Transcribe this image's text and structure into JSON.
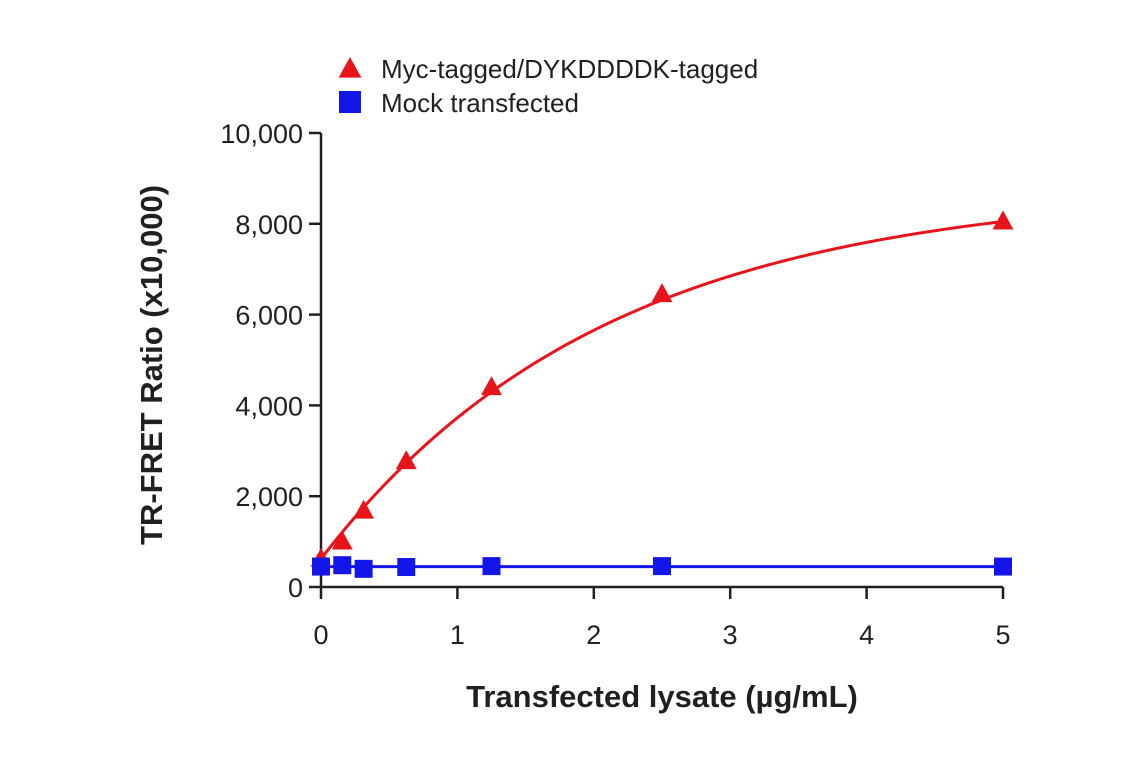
{
  "chart_data": {
    "type": "line",
    "title": "",
    "xlabel": "Transfected lysate (µg/mL)",
    "ylabel": "TR-FRET Ratio (x10,000)",
    "xlim": [
      0,
      5
    ],
    "ylim": [
      0,
      10000
    ],
    "x_ticks": [
      0,
      1,
      2,
      3,
      4,
      5
    ],
    "x_tick_labels": [
      "0",
      "1",
      "2",
      "3",
      "4",
      "5"
    ],
    "y_ticks": [
      0,
      2000,
      4000,
      6000,
      8000,
      10000
    ],
    "y_tick_labels": [
      "0",
      "2,000",
      "4,000",
      "6,000",
      "8,000",
      "10,000"
    ],
    "grid": false,
    "legend_position": "top-left",
    "series": [
      {
        "name": "Myc-tagged/DYKDDDDK-tagged",
        "marker": "triangle",
        "color": "#e8141b",
        "x": [
          0,
          0.156,
          0.3125,
          0.625,
          1.25,
          2.5,
          5
        ],
        "y": [
          620,
          1000,
          1680,
          2770,
          4400,
          6450,
          8050
        ],
        "fit": "saturation"
      },
      {
        "name": "Mock transfected",
        "marker": "square",
        "color": "#1316e8",
        "x": [
          0,
          0.156,
          0.3125,
          0.625,
          1.25,
          2.5,
          5
        ],
        "y": [
          450,
          480,
          400,
          440,
          460,
          460,
          450
        ],
        "fit": "flat"
      }
    ]
  }
}
